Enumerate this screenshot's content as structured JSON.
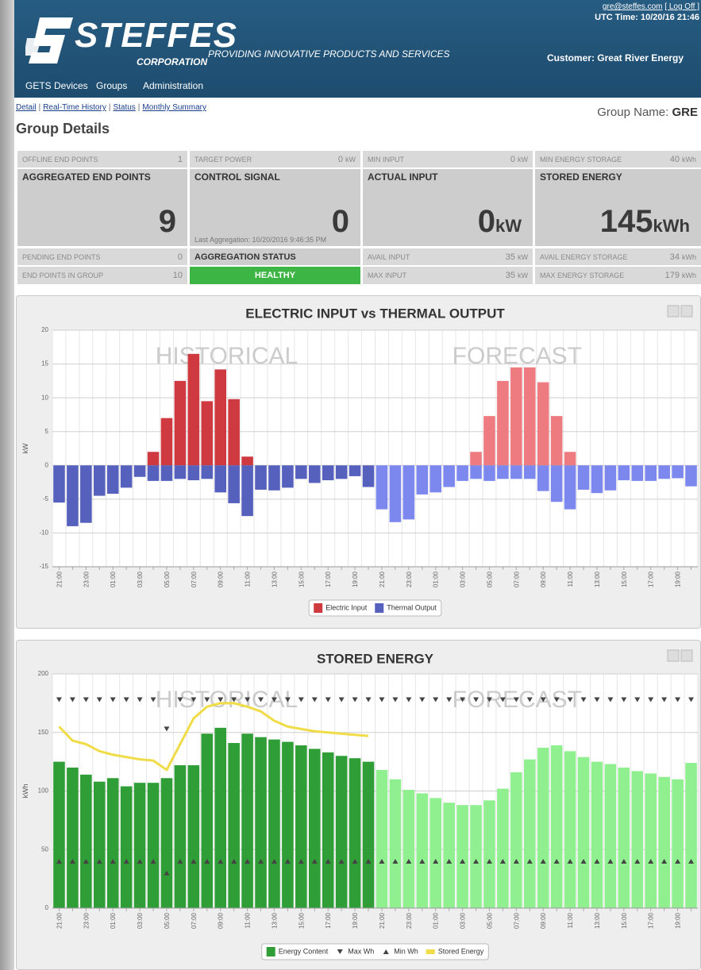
{
  "header": {
    "logo": "STEFFES",
    "logo_sub": "CORPORATION",
    "tagline": "PROVIDING INNOVATIVE PRODUCTS AND SERVICES",
    "user": "gre@steffes.com",
    "logoff": "[ Log Off ]",
    "utc": "UTC Time: 10/20/16 21:46",
    "customer": "Customer: Great River Energy"
  },
  "nav": [
    "GETS Devices",
    "Groups",
    "Administration"
  ],
  "subnav": {
    "links": [
      "Detail",
      "Real-Time History",
      "Status",
      "Monthly Summary"
    ],
    "separator": "|"
  },
  "group_name_label": "Group Name:",
  "group_name": "GRE",
  "page_title": "Group Details",
  "metrics": [
    {
      "top": {
        "label": "OFFLINE END POINTS",
        "value": "1",
        "unit": ""
      },
      "big": {
        "label": "AGGREGATED END POINTS",
        "value": "9",
        "unit": ""
      },
      "row3": {
        "label": "PENDING END POINTS",
        "value": "0",
        "unit": ""
      },
      "row4": {
        "label": "END POINTS IN GROUP",
        "value": "10",
        "unit": ""
      }
    },
    {
      "top": {
        "label": "TARGET POWER",
        "value": "0",
        "unit": "kW"
      },
      "big": {
        "label": "CONTROL SIGNAL",
        "value": "0",
        "unit": "",
        "note": "Last Aggregation: 10/20/2016 9:46:35 PM"
      },
      "row3": {
        "label": "AGGREGATION STATUS"
      },
      "row4": {
        "label": "HEALTHY"
      }
    },
    {
      "top": {
        "label": "MIN INPUT",
        "value": "0",
        "unit": "kW"
      },
      "big": {
        "label": "ACTUAL INPUT",
        "value": "0",
        "unit": "kW"
      },
      "row3": {
        "label": "AVAIL INPUT",
        "value": "35",
        "unit": "kW"
      },
      "row4": {
        "label": "MAX INPUT",
        "value": "35",
        "unit": "kW"
      }
    },
    {
      "top": {
        "label": "MIN ENERGY STORAGE",
        "value": "40",
        "unit": "kWh"
      },
      "big": {
        "label": "STORED ENERGY",
        "value": "145",
        "unit": "kWh"
      },
      "row3": {
        "label": "AVAIL ENERGY STORAGE",
        "value": "34",
        "unit": "kWh"
      },
      "row4": {
        "label": "MAX ENERGY STORAGE",
        "value": "179",
        "unit": "kWh"
      }
    }
  ],
  "chart_data": [
    {
      "type": "bar",
      "title": "ELECTRIC INPUT vs THERMAL OUTPUT",
      "ylabel": "kW",
      "annotations": [
        "HISTORICAL",
        "FORECAST"
      ],
      "categories": [
        "21:00",
        null,
        "23:00",
        null,
        "01:00",
        null,
        "03:00",
        null,
        "05:00",
        null,
        "07:00",
        null,
        "09:00",
        null,
        "11:00",
        null,
        "13:00",
        null,
        "15:00",
        null,
        "17:00",
        null,
        "19:00",
        null,
        "21:00",
        null,
        "23:00",
        null,
        "01:00",
        null,
        "03:00",
        null,
        "05:00",
        null,
        "07:00",
        null,
        "09:00",
        null,
        "11:00",
        null,
        "13:00",
        null,
        "15:00",
        null,
        "17:00",
        null,
        "19:00",
        null
      ],
      "ylim": [
        -15,
        20
      ],
      "yticks": [
        -15,
        -10,
        -5,
        0,
        5,
        10,
        15,
        20
      ],
      "grid": true,
      "series": [
        {
          "name": "Electric Input",
          "type": "bar",
          "color": "#cf3a40",
          "forecast_color": "#ee7b80",
          "values": [
            0,
            0,
            0,
            0,
            0,
            0,
            0,
            2,
            7,
            12.5,
            16.5,
            9.5,
            14.2,
            9.8,
            1.3,
            0,
            0,
            0,
            0,
            0,
            0,
            0,
            0,
            0,
            0,
            0,
            0,
            0,
            0,
            0,
            0,
            2,
            7.3,
            12.5,
            14.5,
            14.5,
            12.3,
            7.3,
            2,
            0,
            0,
            0,
            0,
            0,
            0,
            0,
            0,
            0
          ]
        },
        {
          "name": "Thermal Output",
          "type": "bar",
          "color": "#5660bd",
          "forecast_color": "#7d88ee",
          "values": [
            -5.5,
            -9,
            -8.5,
            -4.5,
            -4.2,
            -3.3,
            -1.7,
            -2.3,
            -2.3,
            -2,
            -2.2,
            -2,
            -4,
            -5.6,
            -7.5,
            -3.6,
            -3.7,
            -3.3,
            -2,
            -2.6,
            -2.2,
            -2,
            -1.6,
            -3.2,
            -6.5,
            -8.4,
            -8,
            -4.3,
            -4,
            -3.2,
            -2.3,
            -2,
            -2.3,
            -2,
            -2,
            -2,
            -3.8,
            -5.4,
            -6.5,
            -3.6,
            -4.1,
            -3.7,
            -2.2,
            -2.3,
            -2.3,
            -2,
            -1.9,
            -3.1
          ]
        }
      ]
    },
    {
      "type": "combo",
      "title": "STORED ENERGY",
      "ylabel": "kWh",
      "annotations": [
        "HISTORICAL",
        "FORECAST"
      ],
      "categories": [
        "21:00",
        null,
        "23:00",
        null,
        "01:00",
        null,
        "03:00",
        null,
        "05:00",
        null,
        "07:00",
        null,
        "09:00",
        null,
        "11:00",
        null,
        "13:00",
        null,
        "15:00",
        null,
        "17:00",
        null,
        "19:00",
        null,
        "21:00",
        null,
        "23:00",
        null,
        "01:00",
        null,
        "03:00",
        null,
        "05:00",
        null,
        "07:00",
        null,
        "09:00",
        null,
        "11:00",
        null,
        "13:00",
        null,
        "15:00",
        null,
        "17:00",
        null,
        "19:00",
        null
      ],
      "ylim": [
        0,
        200
      ],
      "yticks": [
        0,
        50,
        100,
        150,
        200
      ],
      "grid": true,
      "series": [
        {
          "name": "Energy Content",
          "type": "bar",
          "color": "#2f9e36",
          "forecast_color": "#90f090",
          "values": [
            125,
            120,
            114,
            108,
            111,
            104,
            107,
            107,
            111,
            122,
            122,
            149,
            154,
            141,
            149,
            146,
            144,
            142,
            139,
            136,
            133,
            130,
            128,
            125,
            118,
            110,
            101,
            98,
            94,
            90,
            88,
            88,
            92,
            102,
            116,
            127,
            137,
            139,
            134,
            129,
            125,
            123,
            120,
            117,
            115,
            112,
            110,
            124
          ]
        },
        {
          "name": "Max Wh",
          "type": "scatter",
          "symbol": "triangle-down",
          "color": "#444444",
          "values": [
            178,
            178,
            178,
            178,
            178,
            178,
            178,
            178,
            153,
            178,
            178,
            178,
            178,
            178,
            178,
            178,
            178,
            178,
            178,
            178,
            178,
            178,
            178,
            178,
            178,
            178,
            178,
            178,
            178,
            178,
            178,
            178,
            178,
            178,
            178,
            178,
            178,
            178,
            178,
            178,
            178,
            178,
            178,
            178,
            178,
            178,
            178,
            178
          ]
        },
        {
          "name": "Min Wh",
          "type": "scatter",
          "symbol": "triangle-up",
          "color": "#444444",
          "values": [
            40,
            40,
            40,
            40,
            40,
            40,
            40,
            40,
            30,
            40,
            40,
            40,
            40,
            40,
            40,
            40,
            40,
            40,
            40,
            40,
            40,
            40,
            40,
            40,
            40,
            40,
            40,
            40,
            40,
            40,
            40,
            40,
            40,
            40,
            40,
            40,
            40,
            40,
            40,
            40,
            40,
            40,
            40,
            40,
            40,
            40,
            40,
            40
          ]
        },
        {
          "name": "Stored Energy",
          "type": "line",
          "color": "#f0dc46",
          "values": [
            155,
            143,
            140,
            134,
            131,
            129,
            127,
            126,
            118,
            140,
            162,
            172,
            175,
            175,
            172,
            168,
            160,
            155,
            153,
            151,
            150,
            149,
            148,
            147,
            null,
            null,
            null,
            null,
            null,
            null,
            null,
            null,
            null,
            null,
            null,
            null,
            null,
            null,
            null,
            null,
            null,
            null,
            null,
            null,
            null,
            null,
            null,
            null
          ]
        }
      ]
    }
  ]
}
